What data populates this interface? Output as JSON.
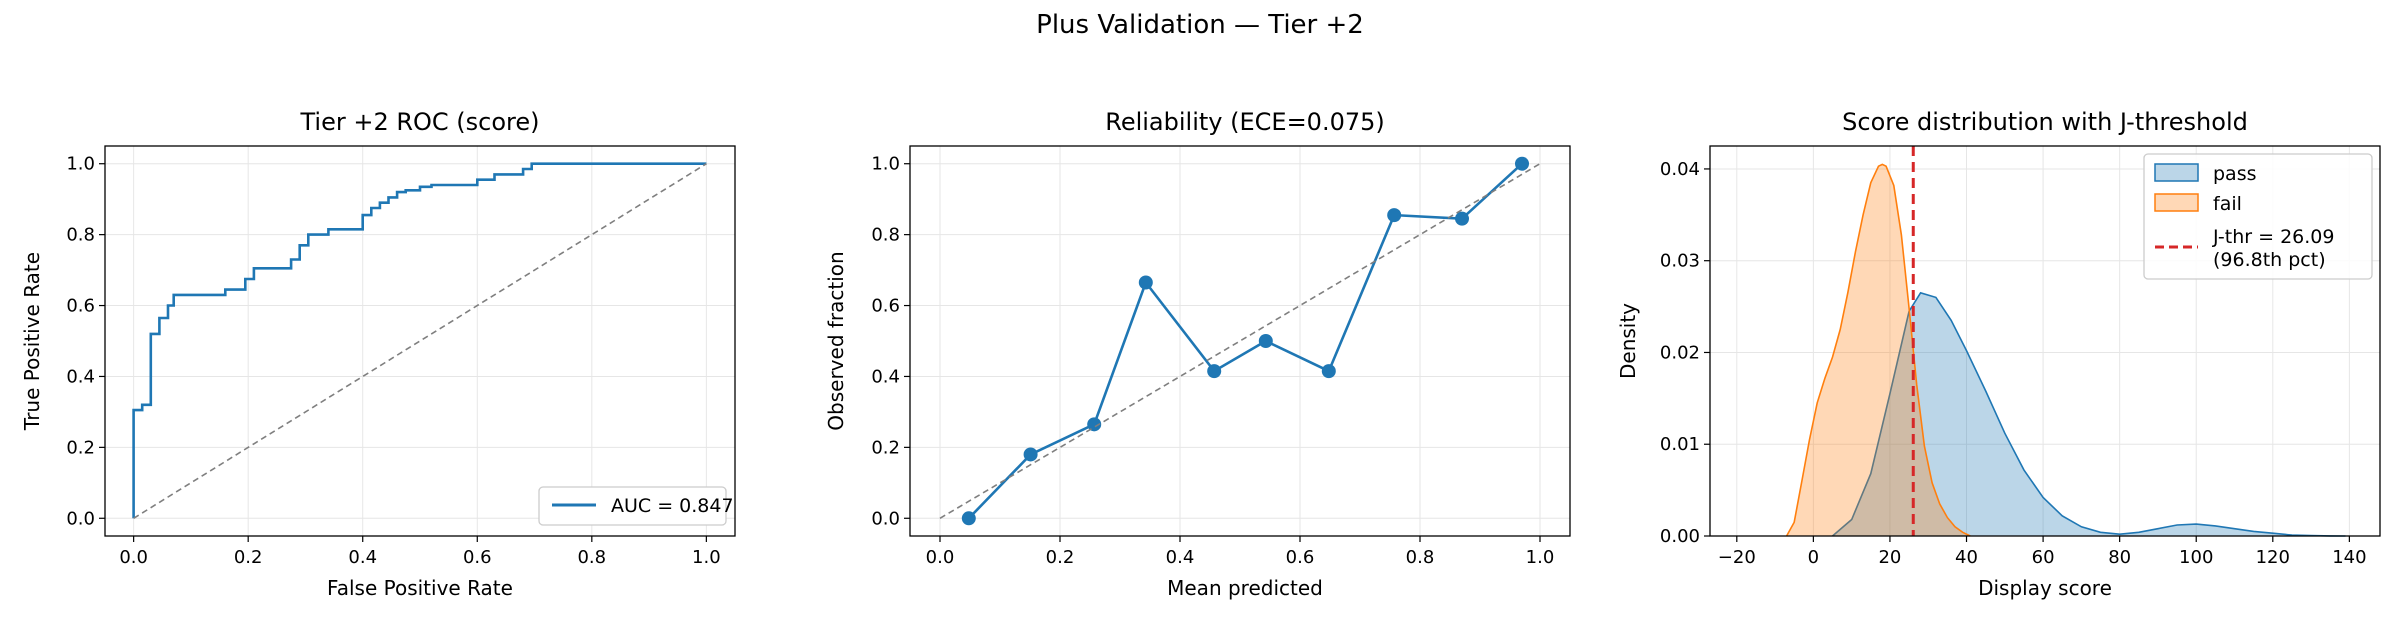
{
  "suptitle": "Plus Validation — Tier +2",
  "colors": {
    "blue": "#1f77b4",
    "orange": "#ff7f0e",
    "red": "#d62728",
    "diag": "#7f7f7f",
    "grid": "#e6e6e6"
  },
  "chart_data": [
    {
      "type": "line",
      "title": "Tier +2 ROC (score)",
      "xlabel": "False Positive Rate",
      "ylabel": "True Positive Rate",
      "xlim": [
        -0.05,
        1.05
      ],
      "ylim": [
        -0.05,
        1.05
      ],
      "xticks": [
        "0.0",
        "0.2",
        "0.4",
        "0.6",
        "0.8",
        "1.0"
      ],
      "yticks": [
        "0.0",
        "0.2",
        "0.4",
        "0.6",
        "0.8",
        "1.0"
      ],
      "grid": true,
      "legend_position": "lower-right",
      "series": [
        {
          "name": "AUC = 0.847",
          "x": [
            0,
            0,
            0.015,
            0.015,
            0.03,
            0.03,
            0.045,
            0.045,
            0.06,
            0.06,
            0.07,
            0.07,
            0.16,
            0.16,
            0.195,
            0.195,
            0.21,
            0.21,
            0.275,
            0.275,
            0.29,
            0.29,
            0.305,
            0.305,
            0.34,
            0.34,
            0.4,
            0.4,
            0.415,
            0.415,
            0.43,
            0.43,
            0.445,
            0.445,
            0.46,
            0.46,
            0.475,
            0.475,
            0.5,
            0.5,
            0.52,
            0.52,
            0.6,
            0.6,
            0.63,
            0.63,
            0.68,
            0.68,
            0.695,
            0.695,
            1.0
          ],
          "y": [
            0,
            0.305,
            0.305,
            0.32,
            0.32,
            0.52,
            0.52,
            0.565,
            0.565,
            0.6,
            0.6,
            0.63,
            0.63,
            0.645,
            0.645,
            0.675,
            0.675,
            0.705,
            0.705,
            0.73,
            0.73,
            0.77,
            0.77,
            0.8,
            0.8,
            0.815,
            0.815,
            0.855,
            0.855,
            0.875,
            0.875,
            0.89,
            0.89,
            0.905,
            0.905,
            0.92,
            0.92,
            0.925,
            0.925,
            0.935,
            0.935,
            0.94,
            0.94,
            0.955,
            0.955,
            0.97,
            0.97,
            0.985,
            0.985,
            1.0,
            1.0
          ]
        },
        {
          "name": "",
          "x": [
            0,
            1
          ],
          "y": [
            0,
            1
          ],
          "style": "dashed"
        }
      ]
    },
    {
      "type": "line",
      "title": "Reliability (ECE=0.075)",
      "xlabel": "Mean predicted",
      "ylabel": "Observed fraction",
      "xlim": [
        -0.05,
        1.05
      ],
      "ylim": [
        -0.05,
        1.05
      ],
      "xticks": [
        "0.0",
        "0.2",
        "0.4",
        "0.6",
        "0.8",
        "1.0"
      ],
      "yticks": [
        "0.0",
        "0.2",
        "0.4",
        "0.6",
        "0.8",
        "1.0"
      ],
      "grid": true,
      "series": [
        {
          "name": "",
          "x": [
            0.048,
            0.151,
            0.257,
            0.343,
            0.457,
            0.543,
            0.648,
            0.757,
            0.87,
            0.97
          ],
          "y": [
            0.0,
            0.18,
            0.265,
            0.665,
            0.415,
            0.5,
            0.415,
            0.855,
            0.845,
            1.0
          ],
          "markers": true
        },
        {
          "name": "",
          "x": [
            0,
            1
          ],
          "y": [
            0,
            1
          ],
          "style": "dashed"
        }
      ]
    },
    {
      "type": "area",
      "title": "Score distribution with J-threshold",
      "xlabel": "Display score",
      "ylabel": "Density",
      "xlim": [
        -27,
        148
      ],
      "ylim": [
        0,
        0.0425
      ],
      "xticks": [
        "−20",
        "0",
        "20",
        "40",
        "60",
        "80",
        "100",
        "120",
        "140"
      ],
      "yticks": [
        "0.00",
        "0.01",
        "0.02",
        "0.03",
        "0.04"
      ],
      "grid": true,
      "legend_position": "top-right",
      "threshold": {
        "value": 26.09,
        "label_line1": "J-thr = 26.09",
        "label_line2": "(96.8th pct)"
      },
      "series": [
        {
          "name": "pass",
          "x": [
            5,
            10,
            15,
            20,
            25,
            28,
            32,
            36,
            40,
            45,
            50,
            55,
            60,
            65,
            70,
            75,
            80,
            85,
            90,
            95,
            100,
            105,
            110,
            115,
            120,
            125,
            130,
            135,
            139
          ],
          "y": [
            0,
            0.0018,
            0.0068,
            0.0155,
            0.0245,
            0.0265,
            0.026,
            0.0235,
            0.0202,
            0.0158,
            0.0112,
            0.0072,
            0.0042,
            0.0022,
            0.001,
            0.0004,
            0.0002,
            0.0004,
            0.0008,
            0.0012,
            0.0013,
            0.0011,
            0.0008,
            0.0005,
            0.0003,
            0.0001,
            5e-05,
            1e-05,
            0
          ]
        },
        {
          "name": "fail",
          "x": [
            -7,
            -5,
            -3,
            -1,
            1,
            3,
            5,
            7,
            9,
            11,
            13,
            15,
            17,
            18,
            19,
            21,
            23,
            25,
            27,
            29,
            31,
            33,
            35,
            37,
            39,
            41
          ],
          "y": [
            0,
            0.0015,
            0.006,
            0.0105,
            0.0145,
            0.0172,
            0.0195,
            0.0225,
            0.0265,
            0.031,
            0.035,
            0.0385,
            0.0403,
            0.0405,
            0.0403,
            0.0382,
            0.0328,
            0.0248,
            0.0165,
            0.0098,
            0.0058,
            0.0035,
            0.002,
            0.001,
            0.0004,
            0
          ]
        }
      ]
    }
  ]
}
